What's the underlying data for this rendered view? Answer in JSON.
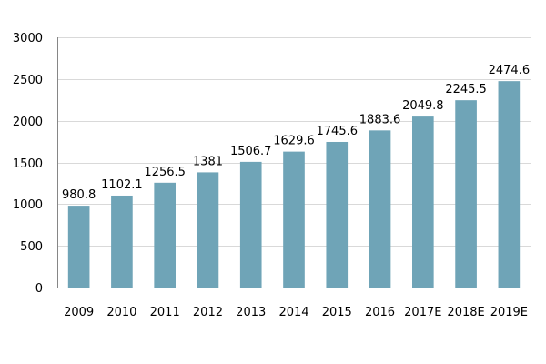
{
  "chart_data": {
    "type": "bar",
    "title": "",
    "xlabel": "",
    "ylabel": "",
    "categories": [
      "2009",
      "2010",
      "2011",
      "2012",
      "2013",
      "2014",
      "2015",
      "2016",
      "2017E",
      "2018E",
      "2019E"
    ],
    "values": [
      980.8,
      1102.1,
      1256.5,
      1381,
      1506.7,
      1629.6,
      1745.6,
      1883.6,
      2049.8,
      2245.5,
      2474.6
    ],
    "data_labels": [
      "980.8",
      "1102.1",
      "1256.5",
      "1381",
      "1506.7",
      "1629.6",
      "1745.6",
      "1883.6",
      "2049.8",
      "2245.5",
      "2474.6"
    ],
    "ylim": [
      0,
      3000
    ],
    "yticks": [
      0,
      500,
      1000,
      1500,
      2000,
      2500,
      3000
    ],
    "ytick_labels": [
      "0",
      "500",
      "1000",
      "1500",
      "2000",
      "2500",
      "3000"
    ],
    "grid": true,
    "legend": "none",
    "bar_color": "#6fa4b7",
    "grid_color": "#d9d9d9",
    "axis_color": "#868686"
  }
}
